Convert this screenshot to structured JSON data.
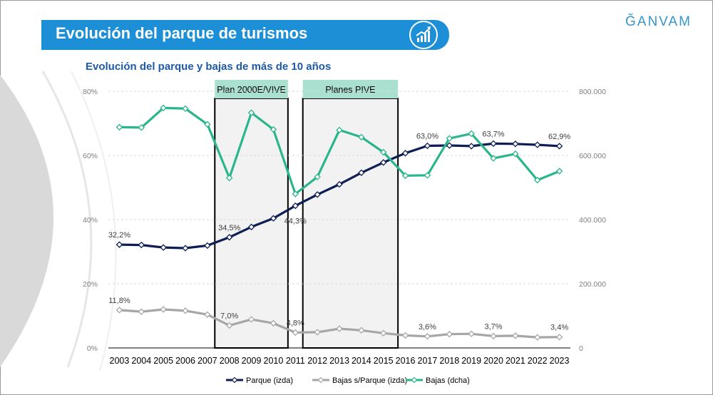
{
  "header": {
    "title": "Evolución del parque de turismos",
    "logo": "ĞANVAM",
    "icon": "chart-growth-icon"
  },
  "colors": {
    "parque": "#0e1e55",
    "bajas_ratio": "#a6a6a6",
    "bajas": "#2bb58c",
    "band_fill": "#f2f2f2",
    "band_label_fill": "#a9e0cf",
    "title_bar": "#1d8fd6"
  },
  "chart_data": {
    "type": "line",
    "title": "Evolución del parque y bajas de más de 10 años",
    "categories": [
      "2003",
      "2004",
      "2005",
      "2006",
      "2007",
      "2008",
      "2009",
      "2010",
      "2011",
      "2012",
      "2013",
      "2014",
      "2015",
      "2016",
      "2017",
      "2018",
      "2019",
      "2020",
      "2021",
      "2022",
      "2023"
    ],
    "left_axis": {
      "ticks": [
        "0%",
        "20%",
        "40%",
        "60%",
        "80%"
      ],
      "range": [
        0,
        80
      ]
    },
    "right_axis": {
      "ticks": [
        "0",
        "200.000",
        "400.000",
        "600.000",
        "800.000"
      ],
      "range": [
        0,
        800000
      ]
    },
    "series": [
      {
        "name": "Parque (izda)",
        "axis": "left",
        "values": [
          32.2,
          32.1,
          31.3,
          31.1,
          31.9,
          34.5,
          37.7,
          40.4,
          44.3,
          47.8,
          51.0,
          54.6,
          57.8,
          60.7,
          63.0,
          63.1,
          62.9,
          63.7,
          63.6,
          63.3,
          62.9
        ]
      },
      {
        "name": "Bajas s/Parque (izda)",
        "axis": "left",
        "values": [
          11.8,
          11.3,
          12.0,
          11.6,
          10.4,
          7.0,
          8.9,
          7.7,
          4.8,
          4.9,
          6.0,
          5.5,
          4.6,
          3.9,
          3.6,
          4.3,
          4.4,
          3.7,
          3.8,
          3.3,
          3.4
        ]
      },
      {
        "name": "Bajas (dcha)",
        "axis": "right",
        "values": [
          688000,
          687000,
          748000,
          746000,
          697000,
          530000,
          733000,
          681000,
          480000,
          533000,
          679000,
          657000,
          610000,
          537000,
          538000,
          653000,
          668000,
          591000,
          605000,
          523000,
          551000
        ]
      }
    ],
    "data_labels": [
      {
        "series": 0,
        "index": 0,
        "text": "32,2%"
      },
      {
        "series": 0,
        "index": 5,
        "text": "34,5%"
      },
      {
        "series": 0,
        "index": 8,
        "text": "44,3%"
      },
      {
        "series": 0,
        "index": 14,
        "text": "63,0%"
      },
      {
        "series": 0,
        "index": 17,
        "text": "63,7%"
      },
      {
        "series": 0,
        "index": 20,
        "text": "62,9%"
      },
      {
        "series": 1,
        "index": 0,
        "text": "11,8%"
      },
      {
        "series": 1,
        "index": 5,
        "text": "7,0%"
      },
      {
        "series": 1,
        "index": 8,
        "text": "4,8%"
      },
      {
        "series": 1,
        "index": 14,
        "text": "3,6%"
      },
      {
        "series": 1,
        "index": 17,
        "text": "3,7%"
      },
      {
        "series": 1,
        "index": 20,
        "text": "3,4%"
      }
    ],
    "bands": [
      {
        "label": "Plan 2000E/VIVE",
        "from": "2008",
        "to": "2010"
      },
      {
        "label": "Planes PIVE",
        "from": "2012",
        "to": "2015"
      }
    ],
    "grid": true,
    "legend_position": "bottom"
  }
}
